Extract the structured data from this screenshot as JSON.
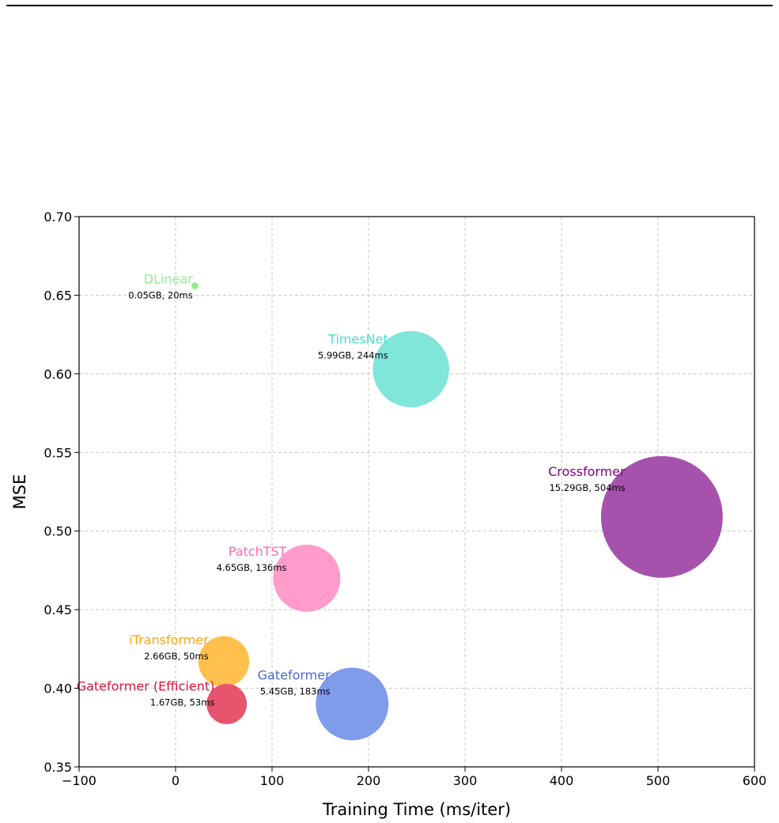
{
  "chart_data": {
    "type": "scatter",
    "title": "",
    "xlabel": "Training Time (ms/iter)",
    "ylabel": "MSE",
    "xlim": [
      -100,
      600
    ],
    "ylim": [
      0.35,
      0.7
    ],
    "x_ticks": [
      -100,
      0,
      100,
      200,
      300,
      400,
      500,
      600
    ],
    "x_tick_labels": [
      "−100",
      "0",
      "100",
      "200",
      "300",
      "400",
      "500",
      "600"
    ],
    "y_ticks": [
      0.35,
      0.4,
      0.45,
      0.5,
      0.55,
      0.6,
      0.65,
      0.7
    ],
    "y_tick_labels": [
      "0.35",
      "0.40",
      "0.45",
      "0.50",
      "0.55",
      "0.60",
      "0.65",
      "0.70"
    ],
    "grid": true,
    "bubble_size_measure": "GB",
    "points": [
      {
        "name": "DLinear",
        "info": "0.05GB, 20ms",
        "x": 20,
        "y": 0.656,
        "memory_gb": 0.05,
        "color": "#90ee90",
        "label_color": "#90ee90"
      },
      {
        "name": "TimesNet",
        "info": "5.99GB, 244ms",
        "x": 244,
        "y": 0.603,
        "memory_gb": 5.99,
        "color": "#7fe6d9",
        "label_color": "#40e0d0"
      },
      {
        "name": "Crossformer",
        "info": "15.29GB, 504ms",
        "x": 504,
        "y": 0.509,
        "memory_gb": 15.29,
        "color": "#a652ad",
        "label_color": "#800080"
      },
      {
        "name": "PatchTST",
        "info": "4.65GB, 136ms",
        "x": 136,
        "y": 0.47,
        "memory_gb": 4.65,
        "color": "#ff9ccc",
        "label_color": "#ff69b4"
      },
      {
        "name": "iTransformer",
        "info": "2.66GB, 50ms",
        "x": 50,
        "y": 0.417,
        "memory_gb": 2.66,
        "color": "#ffc04d",
        "label_color": "#ffa500"
      },
      {
        "name": "Gateformer",
        "info": "5.45GB, 183ms",
        "x": 183,
        "y": 0.39,
        "memory_gb": 5.45,
        "color": "#7f9be9",
        "label_color": "#4169e1"
      },
      {
        "name": "Gateformer (Efficient)",
        "info": "1.67GB, 53ms",
        "x": 53,
        "y": 0.39,
        "memory_gb": 1.67,
        "color": "#e6546e",
        "label_color": "#dc143c"
      }
    ]
  }
}
